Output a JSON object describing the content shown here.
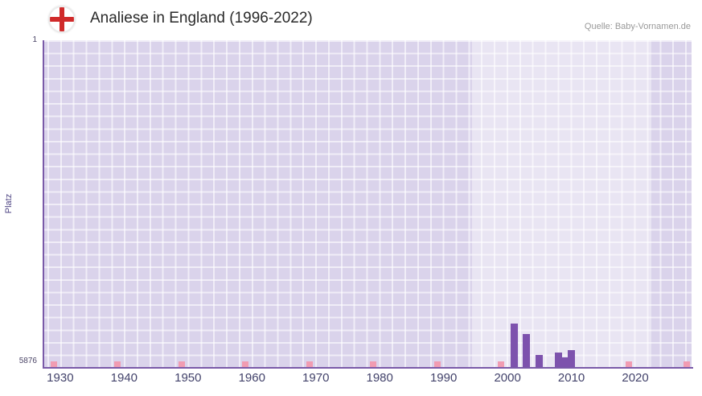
{
  "header": {
    "title": "Analiese in England (1996-2022)",
    "source": "Quelle: Baby-Vornamen.de"
  },
  "chart_data": {
    "type": "bar",
    "title": "Analiese in England (1996-2022)",
    "xlabel": "",
    "ylabel": "Platz",
    "y_axis": {
      "min": 1,
      "max": 5876,
      "top_label": "1",
      "bottom_label": "5876",
      "inverted": true
    },
    "x_axis": {
      "min": 1927.5,
      "max": 2028.8,
      "tick_years": [
        1930,
        1940,
        1950,
        1960,
        1970,
        1980,
        1990,
        2000,
        2010,
        2020
      ]
    },
    "highlight_band": {
      "start_year": 1994.5,
      "end_year": 2022.5
    },
    "series": [
      {
        "name": "Platz",
        "points": [
          {
            "year": 2001,
            "rank": 5090
          },
          {
            "year": 2003,
            "rank": 5280
          },
          {
            "year": 2005,
            "rank": 5660
          },
          {
            "year": 2008,
            "rank": 5610
          },
          {
            "year": 2009,
            "rank": 5700
          },
          {
            "year": 2010,
            "rank": 5570
          }
        ]
      }
    ],
    "decade_marks": [
      1929,
      1939,
      1949,
      1959,
      1969,
      1979,
      1989,
      1999,
      2009,
      2019,
      2028
    ],
    "colors": {
      "bar": "#7d52ad",
      "decade_mark": "#f19cb2",
      "plot_bg": "#dad3eb",
      "band": "rgba(255,255,255,0.42)",
      "axis": "#7a5aa8",
      "tick_label": "#43436b",
      "flag_red": "#d02a2a"
    }
  }
}
